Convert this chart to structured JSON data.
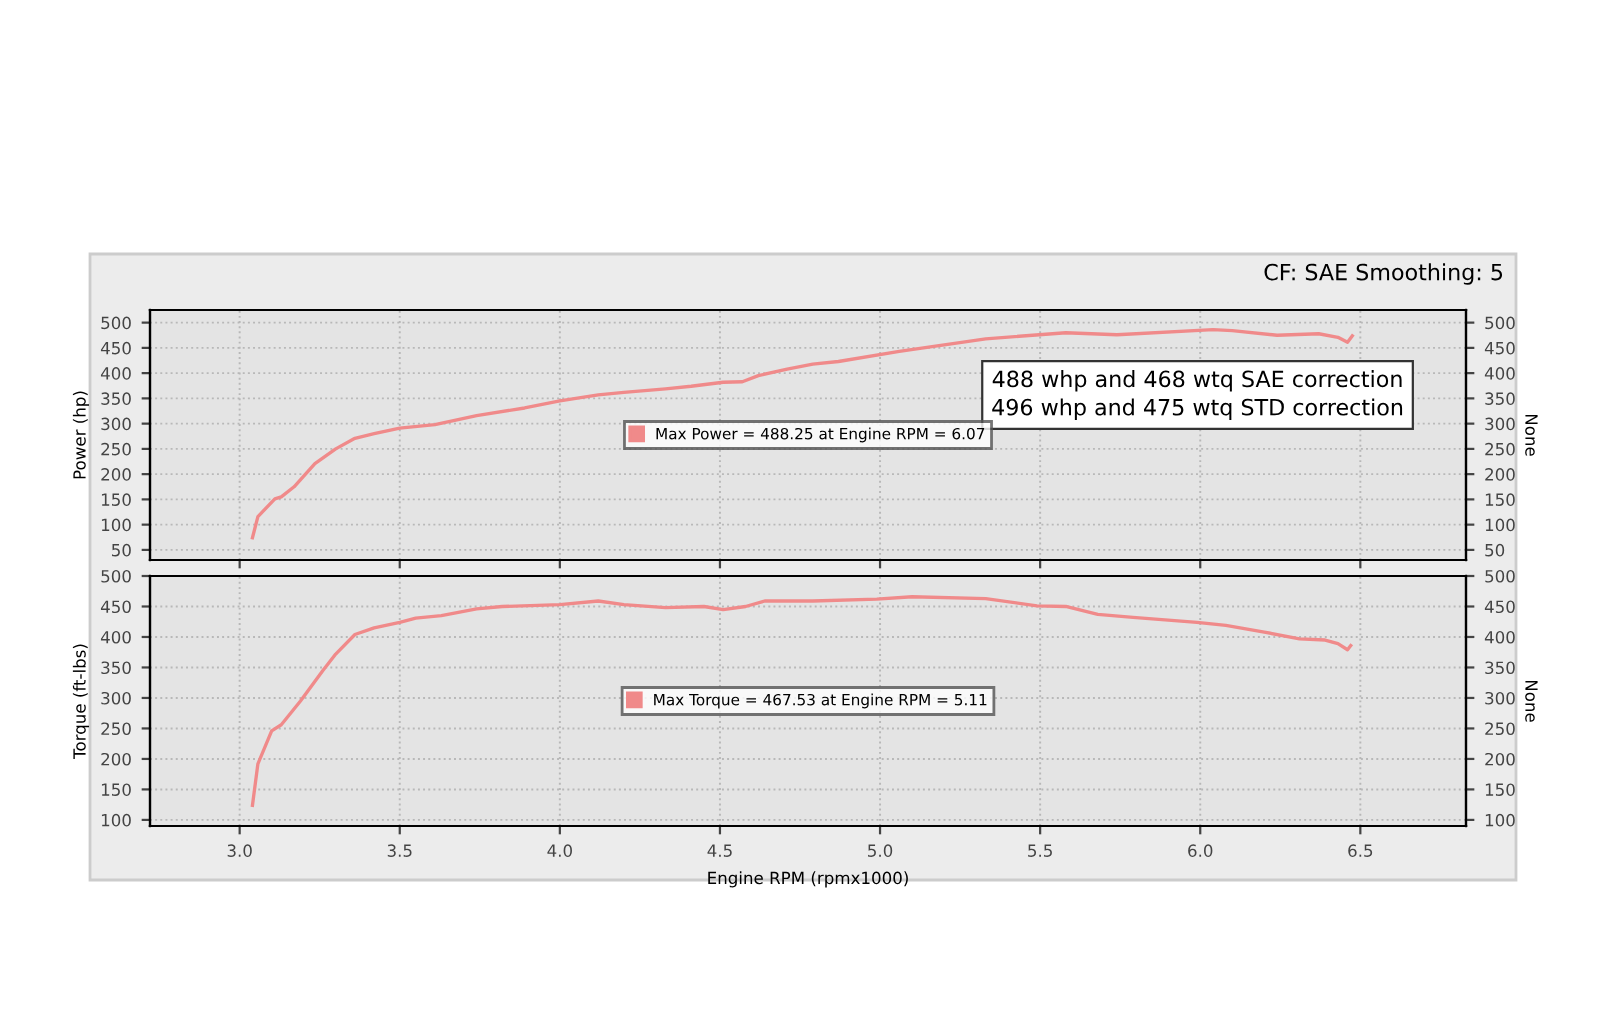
{
  "chart_data": [
    {
      "type": "line",
      "subtitle": "CF: SAE Smoothing: 5",
      "ylabel": "Power (hp)",
      "y2label": "None",
      "annotations": [
        "488 whp and 468 wtq SAE correction",
        "496 whp and 475 wtq STD correction"
      ],
      "series": [
        {
          "name": "Max Power = 488.25 at Engine RPM = 6.07",
          "color": "#f08a8a",
          "x": [
            3.04,
            3.057,
            3.11,
            3.13,
            3.17,
            3.235,
            3.3,
            3.36,
            3.42,
            3.5,
            3.61,
            3.74,
            3.89,
            4.0,
            4.12,
            4.2,
            4.33,
            4.41,
            4.51,
            4.57,
            4.62,
            4.71,
            4.79,
            4.87,
            5.06,
            5.33,
            5.58,
            5.74,
            6.04,
            6.1,
            6.24,
            6.37,
            6.43,
            6.46,
            6.475
          ],
          "values": [
            74,
            116,
            151,
            155,
            175,
            221,
            250,
            271,
            280,
            291,
            298,
            316,
            331,
            345,
            357,
            362,
            369,
            374,
            382,
            383,
            395,
            408,
            418,
            423,
            443,
            468,
            480,
            476,
            486,
            484,
            475,
            478,
            471,
            461,
            474
          ]
        }
      ],
      "xlim": [
        2.72,
        6.83
      ],
      "xticks": [
        3,
        3.5,
        4,
        4.5,
        5,
        5.5,
        6,
        6.5
      ],
      "ylim": [
        30,
        525
      ],
      "yticks": [
        50,
        100,
        150,
        200,
        250,
        300,
        350,
        400,
        450,
        500
      ],
      "y2lim": [
        30,
        525
      ],
      "y2ticks": [
        50,
        100,
        150,
        200,
        250,
        300,
        350,
        400,
        450,
        500
      ],
      "grid": true,
      "legend": "center",
      "tick_labels": "y",
      "line_style": "solid"
    },
    {
      "type": "line",
      "xlabel": "Engine RPM (rpmx1000)",
      "ylabel": "Torque (ft-lbs)",
      "y2label": "None",
      "series": [
        {
          "name": "Max Torque = 467.53 at Engine RPM = 5.11",
          "color": "#f08a8a",
          "x": [
            3.04,
            3.057,
            3.1,
            3.13,
            3.19,
            3.26,
            3.3,
            3.36,
            3.42,
            3.5,
            3.55,
            3.63,
            3.74,
            3.82,
            4.0,
            4.12,
            4.2,
            4.33,
            4.45,
            4.51,
            4.58,
            4.64,
            4.79,
            4.99,
            5.1,
            5.33,
            5.49,
            5.58,
            5.68,
            5.79,
            5.99,
            6.08,
            6.2,
            6.31,
            6.39,
            6.43,
            6.46,
            6.47
          ],
          "values": [
            124,
            192,
            246,
            256,
            295,
            345,
            372,
            404,
            415,
            424,
            431,
            435,
            446,
            450,
            453,
            459,
            453,
            448,
            450,
            445,
            450,
            459,
            459,
            462,
            466,
            463,
            451,
            450,
            437,
            432,
            424,
            419,
            408,
            397,
            395,
            389,
            379,
            386
          ]
        }
      ],
      "xlim": [
        2.72,
        6.83
      ],
      "xticks": [
        {
          "value": 3,
          "label": "3.0"
        },
        3.5,
        {
          "value": 4,
          "label": "4.0"
        },
        4.5,
        {
          "value": 5,
          "label": "5.0"
        },
        5.5,
        {
          "value": 6,
          "label": "6.0"
        },
        6.5
      ],
      "ylim": [
        90,
        500
      ],
      "yticks": [
        100,
        150,
        200,
        250,
        300,
        350,
        400,
        450,
        500
      ],
      "y2lim": [
        90,
        500
      ],
      "y2ticks": [
        100,
        150,
        200,
        250,
        300,
        350,
        400,
        450,
        500
      ],
      "grid": true,
      "legend": "center",
      "line_style": "solid"
    }
  ]
}
